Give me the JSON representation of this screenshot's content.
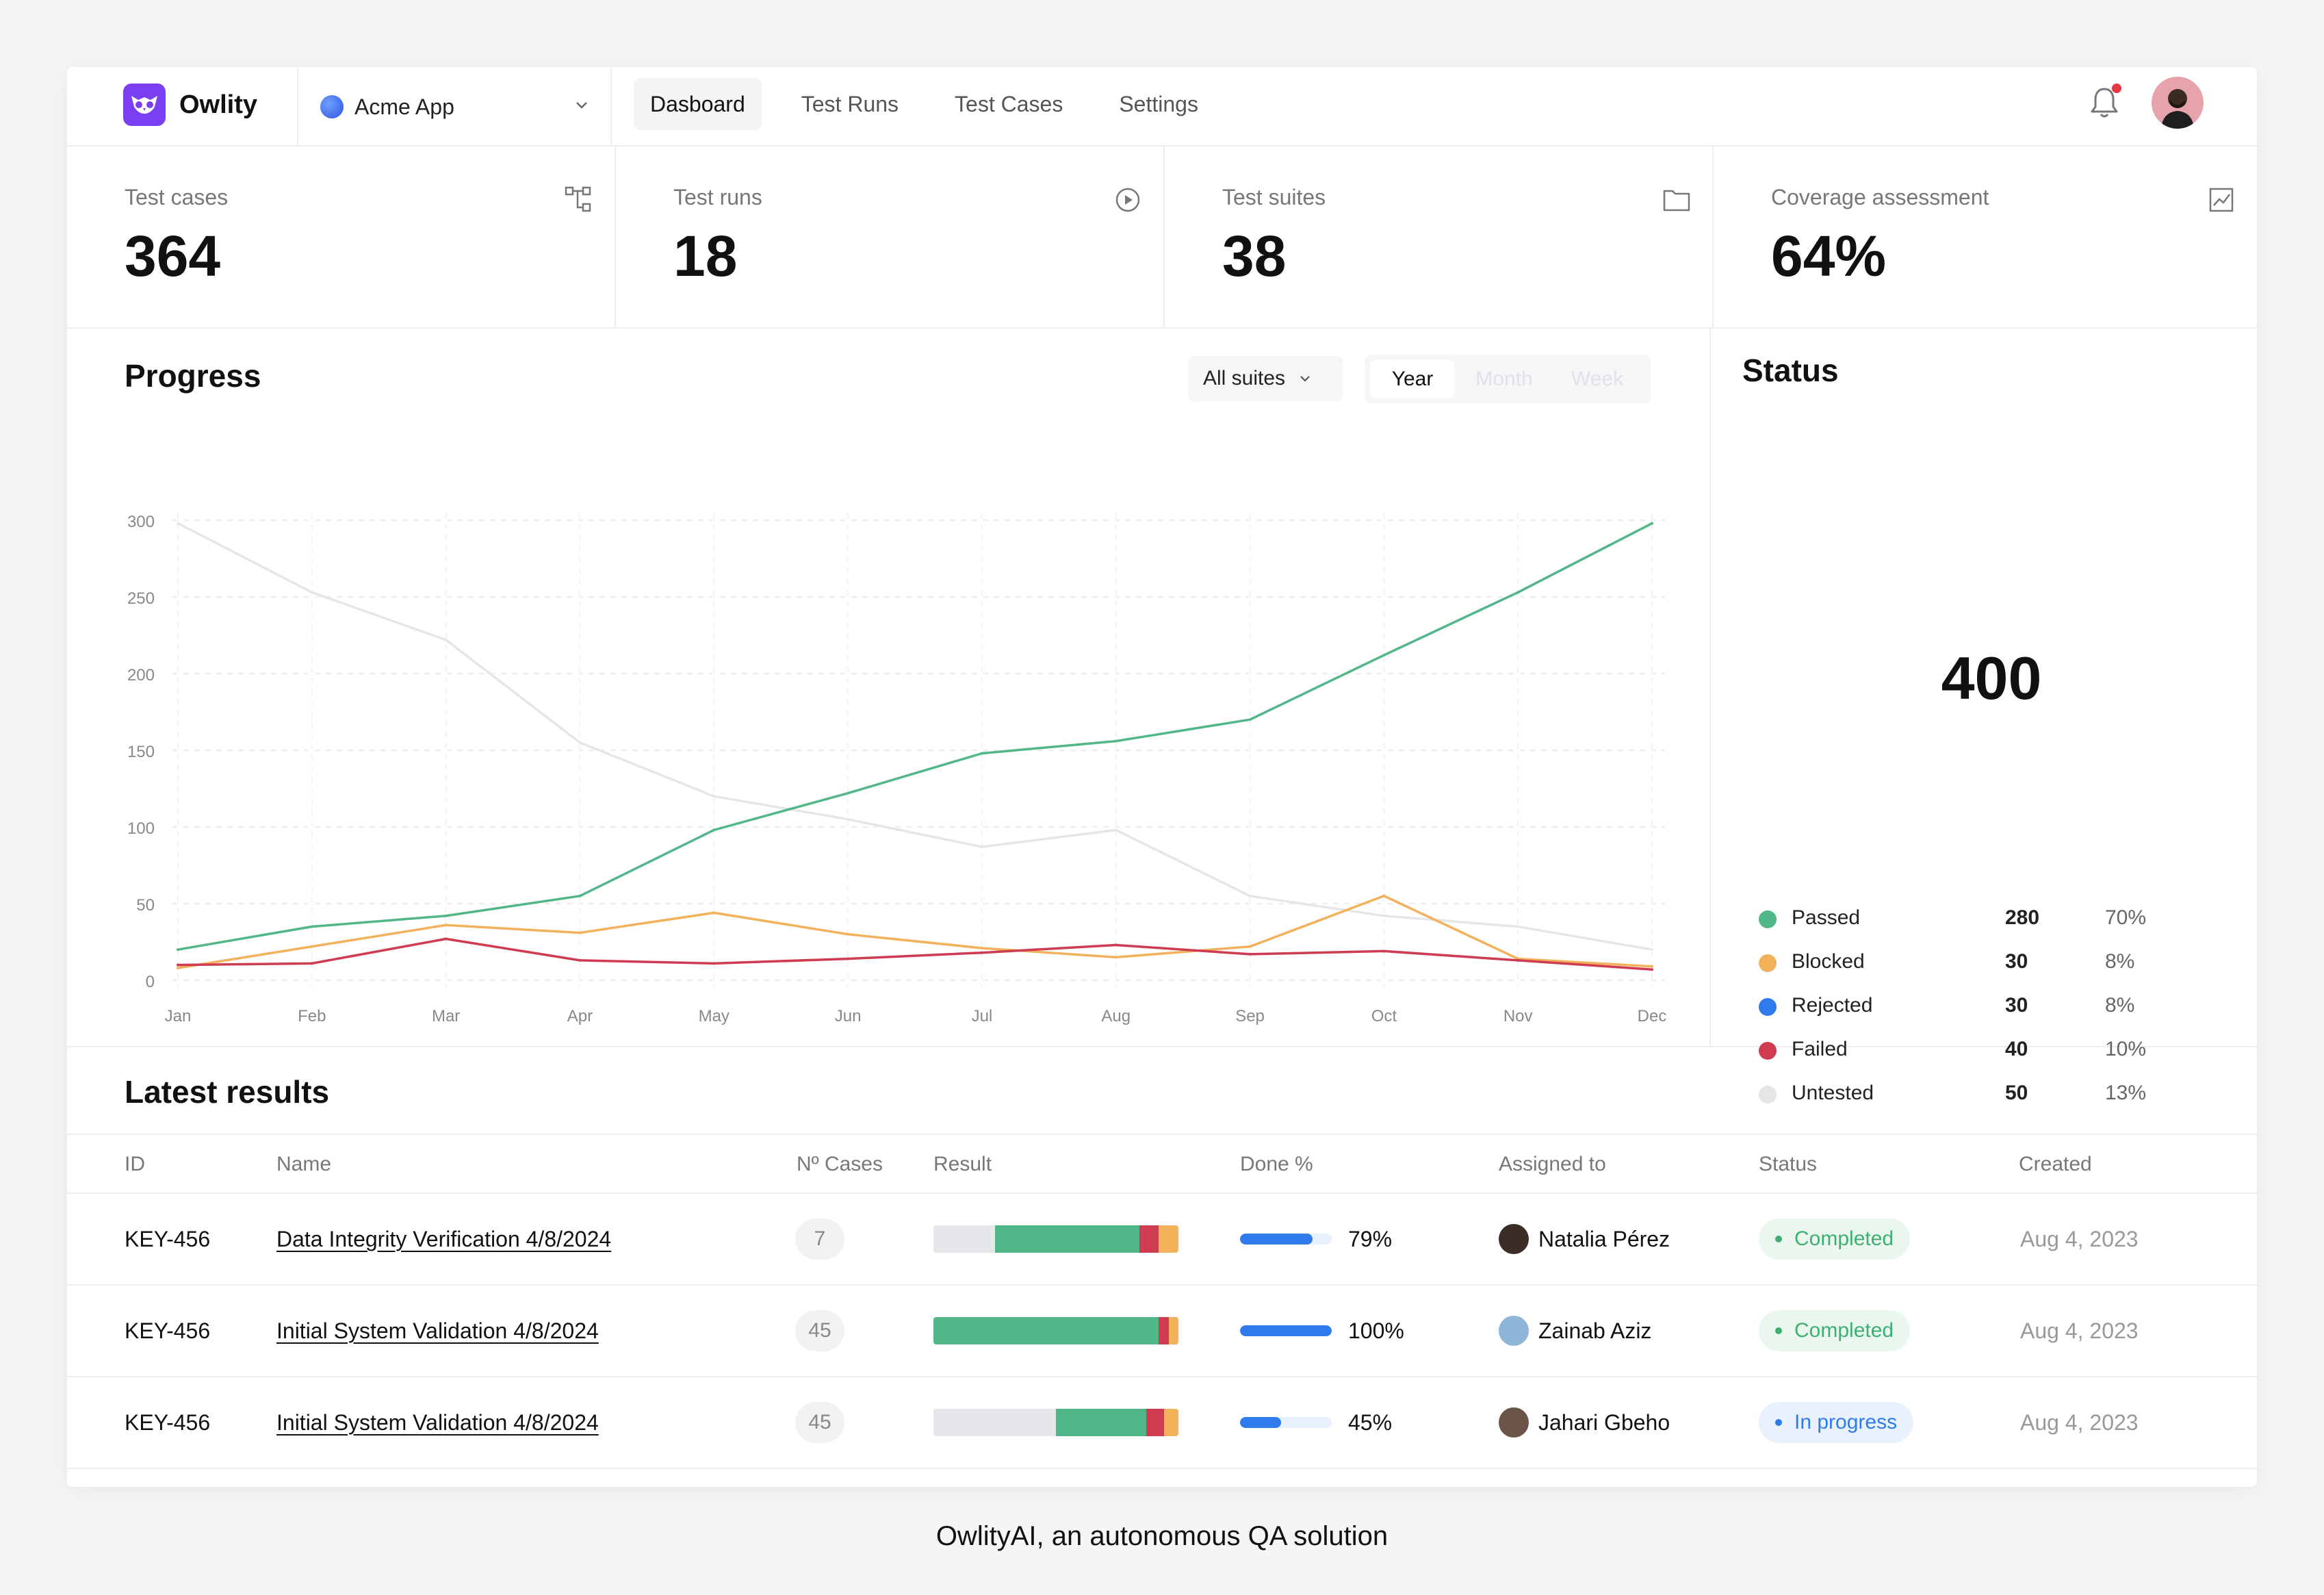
{
  "brand": {
    "name": "Owlity"
  },
  "app_selector": {
    "value": "Acme App"
  },
  "nav": {
    "tabs": [
      "Dasboard",
      "Test Runs",
      "Test Cases",
      "Settings"
    ],
    "active": "Dasboard"
  },
  "stats": [
    {
      "label": "Test cases",
      "value": "364",
      "icon": "hierarchy-icon"
    },
    {
      "label": "Test runs",
      "value": "18",
      "icon": "play-circle-icon"
    },
    {
      "label": "Test suites",
      "value": "38",
      "icon": "folder-icon"
    },
    {
      "label": "Coverage assessment",
      "value": "64%",
      "icon": "chart-icon"
    }
  ],
  "progress": {
    "title": "Progress",
    "filter_label": "All suites",
    "periods": [
      "Year",
      "Month",
      "Week"
    ],
    "active_period": "Year"
  },
  "chart_data": {
    "type": "line",
    "title": "Progress",
    "x": [
      "Jan",
      "Feb",
      "Mar",
      "Apr",
      "May",
      "Jun",
      "Jul",
      "Aug",
      "Sep",
      "Oct",
      "Nov",
      "Dec"
    ],
    "ylim": [
      0,
      300
    ],
    "yticks": [
      0,
      50,
      100,
      150,
      200,
      250,
      300
    ],
    "grid": true,
    "legend": "bottom-center",
    "series": [
      {
        "name": "Passed",
        "color": "#52b788",
        "values": [
          20,
          35,
          42,
          55,
          98,
          122,
          148,
          156,
          170,
          212,
          253,
          298
        ]
      },
      {
        "name": "Rejected",
        "color": "#f2b25c",
        "values": [
          8,
          22,
          36,
          31,
          44,
          30,
          21,
          15,
          22,
          55,
          14,
          9
        ]
      },
      {
        "name": "Failed",
        "color": "#cf3b50",
        "values": [
          10,
          11,
          27,
          13,
          11,
          14,
          18,
          23,
          17,
          19,
          13,
          7
        ]
      },
      {
        "name": "Untested",
        "color": "#e6e6e6",
        "values": [
          298,
          253,
          222,
          155,
          120,
          105,
          87,
          98,
          55,
          42,
          35,
          20
        ]
      }
    ]
  },
  "status": {
    "title": "Status",
    "total": "400",
    "items": [
      {
        "name": "Passed",
        "count": "280",
        "pct": "70%",
        "color": "#52b788"
      },
      {
        "name": "Blocked",
        "count": "30",
        "pct": "8%",
        "color": "#f2b25c"
      },
      {
        "name": "Rejected",
        "count": "30",
        "pct": "8%",
        "color": "#2f7bec"
      },
      {
        "name": "Failed",
        "count": "40",
        "pct": "10%",
        "color": "#cf3b50"
      },
      {
        "name": "Untested",
        "count": "50",
        "pct": "13%",
        "color": "#e6e6e6"
      }
    ]
  },
  "results": {
    "title": "Latest results",
    "columns": [
      "ID",
      "Name",
      "Nº Cases",
      "Result",
      "Done %",
      "Assigned to",
      "Status",
      "Created"
    ],
    "rows": [
      {
        "id": "KEY-456",
        "name": "Data Integrity Verification 4/8/2024",
        "cases": "7",
        "result": [
          0.25,
          0.59,
          0.08,
          0.08
        ],
        "done": 0.79,
        "done_label": "79%",
        "assignee": "Natalia Pérez",
        "status": "Completed",
        "status_kind": "completed",
        "created": "Aug 4, 2023"
      },
      {
        "id": "KEY-456",
        "name": "Initial System Validation 4/8/2024",
        "cases": "45",
        "result": [
          0,
          0.92,
          0.04,
          0.04
        ],
        "done": 1.0,
        "done_label": "100%",
        "assignee": "Zainab Aziz",
        "status": "Completed",
        "status_kind": "completed",
        "created": "Aug 4, 2023"
      },
      {
        "id": "KEY-456",
        "name": "Initial System Validation 4/8/2024",
        "cases": "45",
        "result": [
          0.5,
          0.37,
          0.07,
          0.06
        ],
        "done": 0.45,
        "done_label": "45%",
        "assignee": "Jahari Gbeho",
        "status": "In progress",
        "status_kind": "progress",
        "created": "Aug 4, 2023"
      }
    ]
  },
  "caption": "OwlityAI, an autonomous QA solution"
}
